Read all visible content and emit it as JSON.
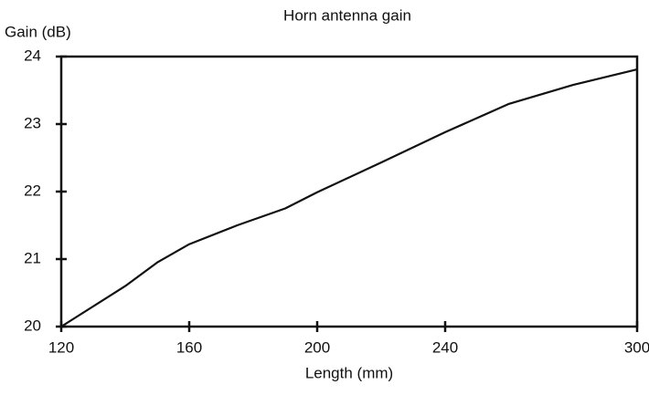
{
  "chart_data": {
    "type": "line",
    "title": "Horn antenna gain",
    "y_label": "Gain (dB)",
    "x_label": "Length (mm)",
    "x": [
      120,
      140,
      150,
      160,
      175,
      190,
      200,
      220,
      240,
      260,
      280,
      300
    ],
    "series": [
      {
        "name": "Gain",
        "color": "#111111",
        "values": [
          20.0,
          20.6,
          20.95,
          21.22,
          21.5,
          21.75,
          21.99,
          22.43,
          22.88,
          23.3,
          23.58,
          23.81
        ]
      }
    ],
    "xlim": [
      120,
      300
    ],
    "xticks": [
      120,
      160,
      200,
      240,
      300
    ],
    "ylim": [
      20,
      24
    ],
    "yticks": [
      20,
      21,
      22,
      23,
      24
    ]
  }
}
